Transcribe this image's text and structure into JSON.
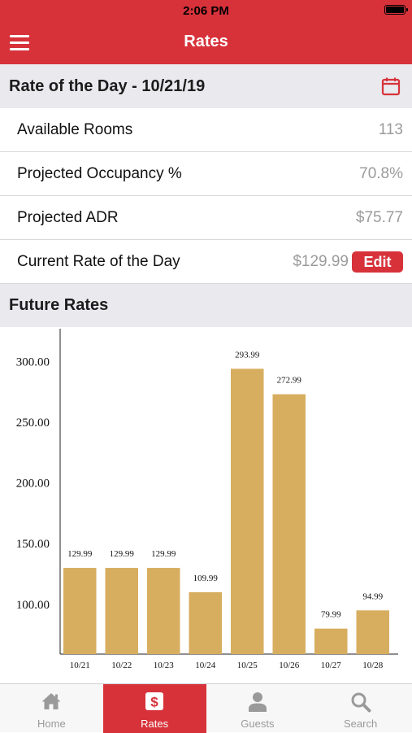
{
  "status_bar": {
    "time": "2:06 PM"
  },
  "header": {
    "title": "Rates",
    "menu_icon": "hamburger-menu-icon"
  },
  "rate_of_day": {
    "title": "Rate of the Day - 10/21/19",
    "calendar_icon": "calendar-icon",
    "rows": [
      {
        "label": "Available Rooms",
        "value": "113"
      },
      {
        "label": "Projected Occupancy %",
        "value": "70.8%"
      },
      {
        "label": "Projected ADR",
        "value": "$75.77"
      },
      {
        "label": "Current Rate of the Day",
        "value": "$129.99",
        "action": "Edit"
      }
    ]
  },
  "future_rates": {
    "title": "Future Rates"
  },
  "chart_data": {
    "type": "bar",
    "categories": [
      "10/21",
      "10/22",
      "10/23",
      "10/24",
      "10/25",
      "10/26",
      "10/27",
      "10/28"
    ],
    "values": [
      129.99,
      129.99,
      129.99,
      109.99,
      293.99,
      272.99,
      79.99,
      94.99
    ],
    "value_labels": [
      "129.99",
      "129.99",
      "129.99",
      "109.99",
      "293.99",
      "272.99",
      "79.99",
      "94.99"
    ],
    "yticks": [
      "100.00",
      "150.00",
      "200.00",
      "250.00",
      "300.00"
    ],
    "ylim": [
      59,
      327
    ],
    "grid": false,
    "bar_color": "#d7ae5f"
  },
  "tabs": [
    {
      "label": "Home",
      "icon": "home-icon",
      "active": false
    },
    {
      "label": "Rates",
      "icon": "dollar-icon",
      "active": true
    },
    {
      "label": "Guests",
      "icon": "person-icon",
      "active": false
    },
    {
      "label": "Search",
      "icon": "search-icon",
      "active": false
    }
  ],
  "colors": {
    "accent": "#d7323a",
    "section_bg": "#e9e9ee"
  }
}
